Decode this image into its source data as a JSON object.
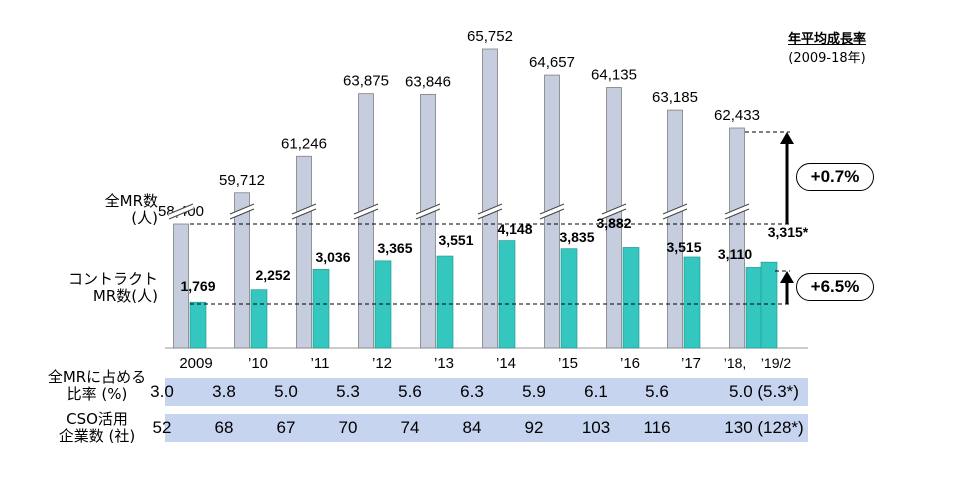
{
  "chart_data": {
    "type": "bar",
    "categories": [
      "2009",
      "’10",
      "’11",
      "’12",
      "’13",
      "’14",
      "’15",
      "’16",
      "’17",
      "’18,",
      "’19/2"
    ],
    "series": [
      {
        "name": "全MR数 (人)",
        "values": [
          58400,
          59712,
          61246,
          63875,
          63846,
          65752,
          64657,
          64135,
          63185,
          62433,
          null
        ],
        "labels": [
          "58,400",
          "59,712",
          "61,246",
          "63,875",
          "63,846",
          "65,752",
          "64,657",
          "64,135",
          "63,185",
          "62,433",
          ""
        ]
      },
      {
        "name": "コントラクトMR数(人)",
        "values": [
          1769,
          2252,
          3036,
          3365,
          3551,
          4148,
          3835,
          3882,
          3515,
          3110,
          3315
        ],
        "labels": [
          "1,769",
          "2,252",
          "3,036",
          "3,365",
          "3,551",
          "4,148",
          "3,835",
          "3,882",
          "3,515",
          "3,110",
          "3,315*"
        ]
      }
    ],
    "axis_break": true,
    "growth": {
      "title": "年平均成長率",
      "period": "(2009-18年)",
      "total_mr": "+0.7%",
      "contract_mr": "+6.5%"
    }
  },
  "labels": {
    "total_mr_1": "全MR数",
    "total_mr_2": "(人)",
    "contract_mr_1": "コントラクト",
    "contract_mr_2": "MR数(人)"
  },
  "table": {
    "share": {
      "label_1": "全MRに占める",
      "label_2": "比率 (%)",
      "values": [
        "3.0",
        "3.8",
        "5.0",
        "5.3",
        "5.6",
        "6.3",
        "5.9",
        "6.1",
        "5.6",
        "5.0 (5.3*)"
      ]
    },
    "cso": {
      "label_1": "CSO活用",
      "label_2": "企業数 (社)",
      "values": [
        "52",
        "68",
        "67",
        "70",
        "74",
        "84",
        "92",
        "103",
        "116",
        "130 (128*)"
      ]
    }
  },
  "colors": {
    "total_bar": "#c5cdde",
    "contract_bar": "#33c7c0",
    "table_bg": "#c6d4f0"
  }
}
